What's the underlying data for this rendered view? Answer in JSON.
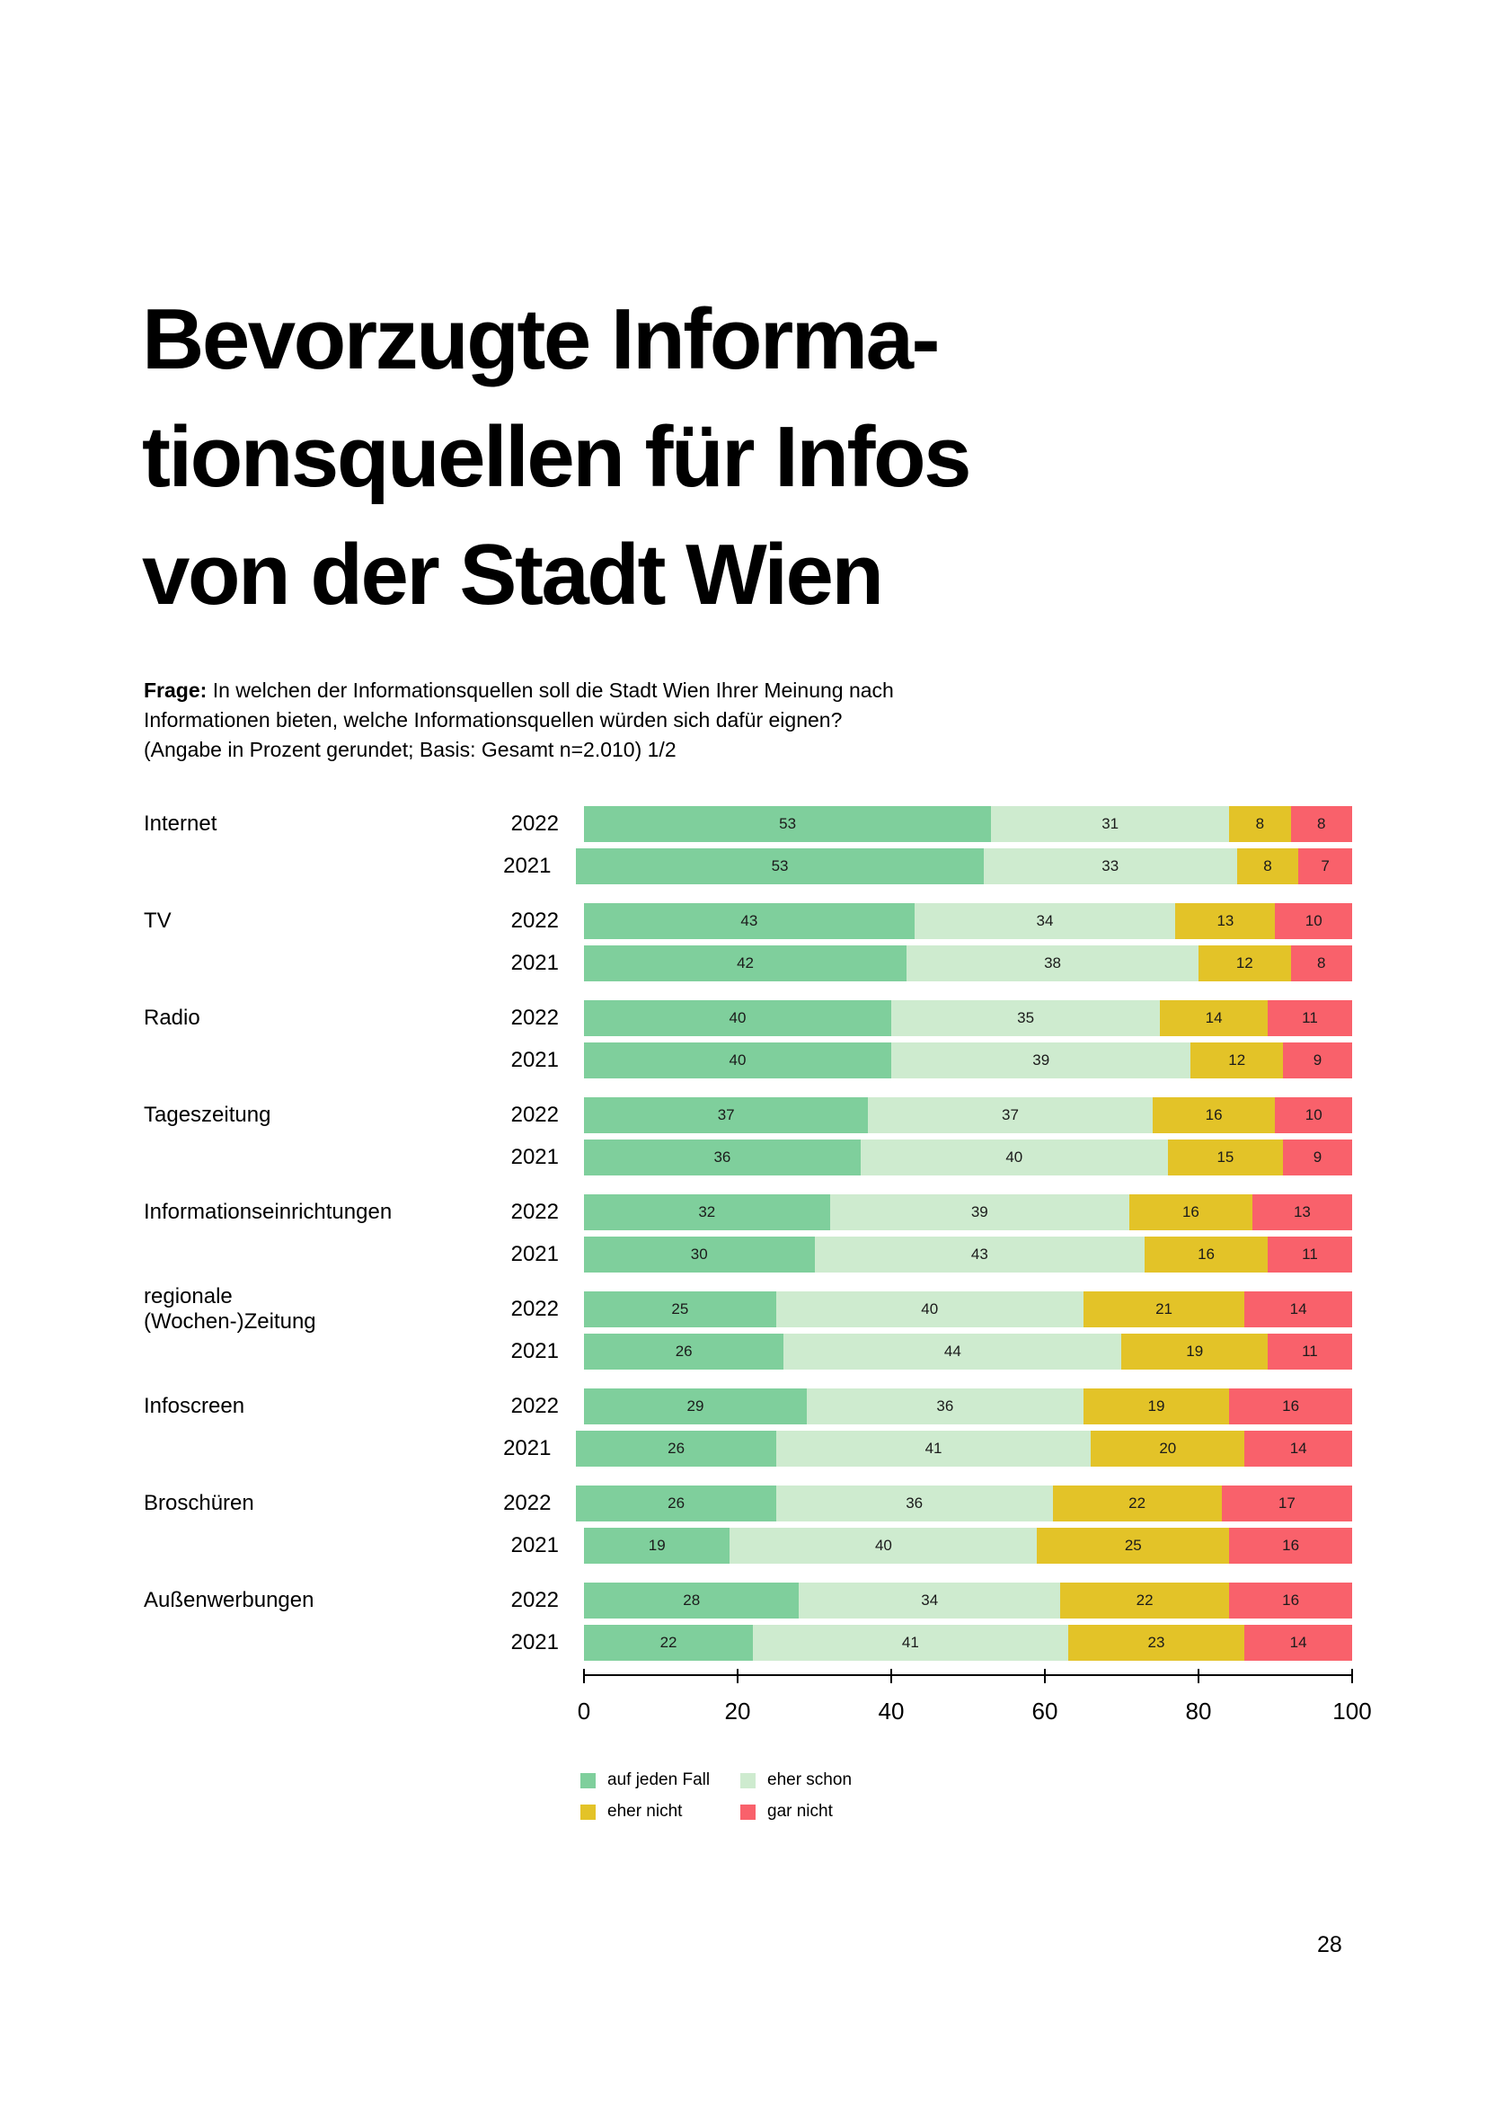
{
  "page": {
    "number": "28"
  },
  "title": {
    "lines": [
      "Bevorzugte Informa-",
      "tionsquellen für Infos",
      "von der Stadt Wien"
    ]
  },
  "question": {
    "label": "Frage:",
    "line1": "In welchen der Informationsquellen soll die Stadt Wien Ihrer Meinung nach",
    "line2": "Informationen bieten, welche Informationsquellen würden sich dafür eignen?",
    "line3": "(Angabe in Prozent gerundet; Basis: Gesamt n=2.010) 1/2"
  },
  "chart_data": {
    "type": "bar",
    "orientation": "horizontal",
    "stacked": true,
    "unit": "percent",
    "xlim": [
      0,
      100
    ],
    "x_ticks": [
      0,
      20,
      40,
      60,
      80,
      100
    ],
    "grid": false,
    "legend_position": "bottom",
    "legend": [
      {
        "name": "auf jeden Fall",
        "color": "#7FCF9C"
      },
      {
        "name": "eher schon",
        "color": "#CEEBCF"
      },
      {
        "name": "eher nicht",
        "color": "#E3C328"
      },
      {
        "name": "gar nicht",
        "color": "#F9616B"
      }
    ],
    "groups": [
      {
        "category": "Internet",
        "bars": [
          {
            "year": "2022",
            "values": [
              53,
              31,
              8,
              8
            ]
          },
          {
            "year": "2021",
            "values": [
              53,
              33,
              8,
              7
            ]
          }
        ]
      },
      {
        "category": "TV",
        "bars": [
          {
            "year": "2022",
            "values": [
              43,
              34,
              13,
              10
            ]
          },
          {
            "year": "2021",
            "values": [
              42,
              38,
              12,
              8
            ]
          }
        ]
      },
      {
        "category": "Radio",
        "bars": [
          {
            "year": "2022",
            "values": [
              40,
              35,
              14,
              11
            ]
          },
          {
            "year": "2021",
            "values": [
              40,
              39,
              12,
              9
            ]
          }
        ]
      },
      {
        "category": "Tageszeitung",
        "bars": [
          {
            "year": "2022",
            "values": [
              37,
              37,
              16,
              10
            ]
          },
          {
            "year": "2021",
            "values": [
              36,
              40,
              15,
              9
            ]
          }
        ]
      },
      {
        "category": "Informationseinrichtungen",
        "bars": [
          {
            "year": "2022",
            "values": [
              32,
              39,
              16,
              13
            ]
          },
          {
            "year": "2021",
            "values": [
              30,
              43,
              16,
              11
            ]
          }
        ]
      },
      {
        "category": "regionale (Wochen-)Zeitung",
        "bars": [
          {
            "year": "2022",
            "values": [
              25,
              40,
              21,
              14
            ]
          },
          {
            "year": "2021",
            "values": [
              26,
              44,
              19,
              11
            ]
          }
        ]
      },
      {
        "category": "Infoscreen",
        "bars": [
          {
            "year": "2022",
            "values": [
              29,
              36,
              19,
              16
            ]
          },
          {
            "year": "2021",
            "values": [
              26,
              41,
              20,
              14
            ]
          }
        ]
      },
      {
        "category": "Broschüren",
        "bars": [
          {
            "year": "2022",
            "values": [
              26,
              36,
              22,
              17
            ]
          },
          {
            "year": "2021",
            "values": [
              19,
              40,
              25,
              16
            ]
          }
        ]
      },
      {
        "category": "Außenwerbungen",
        "bars": [
          {
            "year": "2022",
            "values": [
              28,
              34,
              22,
              16
            ]
          },
          {
            "year": "2021",
            "values": [
              22,
              41,
              23,
              14
            ]
          }
        ]
      }
    ]
  }
}
